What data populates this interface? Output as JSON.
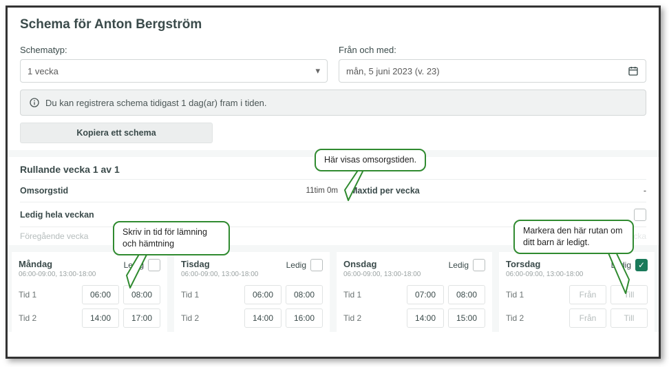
{
  "title": "Schema för Anton Bergström",
  "schematype_label": "Schematyp:",
  "schematype_value": "1 vecka",
  "from_label": "Från och med:",
  "from_value": "mån, 5 juni 2023 (v. 23)",
  "info_text": "Du kan registrera schema tidigast 1 dag(ar) fram i tiden.",
  "copy_label": "Kopiera ett schema",
  "week_title": "Rullande vecka 1 av 1",
  "omsorgstid_label": "Omsorgstid",
  "omsorgstid_value": "11tim 0m",
  "maxtid_label": "Maxtid per vecka",
  "maxtid_value": "-",
  "ledig_hela_label": "Ledig hela veckan",
  "prev_label": "Föregående vecka",
  "next_label": "Nästa vecka",
  "ledig_label": "Ledig",
  "tid1_label": "Tid 1",
  "tid2_label": "Tid 2",
  "fr_ph": "Från",
  "till_ph": "Till",
  "days": [
    {
      "name": "Måndag",
      "times_sub": "06:00-09:00, 13:00-18:00",
      "ledig": false,
      "t1a": "06:00",
      "t1b": "08:00",
      "t2a": "14:00",
      "t2b": "17:00"
    },
    {
      "name": "Tisdag",
      "times_sub": "06:00-09:00, 13:00-18:00",
      "ledig": false,
      "t1a": "06:00",
      "t1b": "08:00",
      "t2a": "14:00",
      "t2b": "16:00"
    },
    {
      "name": "Onsdag",
      "times_sub": "06:00-09:00, 13:00-18:00",
      "ledig": false,
      "t1a": "07:00",
      "t1b": "08:00",
      "t2a": "14:00",
      "t2b": "15:00"
    },
    {
      "name": "Torsdag",
      "times_sub": "06:00-09:00, 13:00-18:00",
      "ledig": true
    }
  ],
  "callouts": {
    "c1": "Här visas omsorgstiden.",
    "c2": "Skriv in tid för lämning och hämtning",
    "c3": "Markera den här rutan om ditt barn är ledigt."
  },
  "colors": {
    "accent_green": "#2f8a2f",
    "check_green": "#1a7a5a"
  }
}
